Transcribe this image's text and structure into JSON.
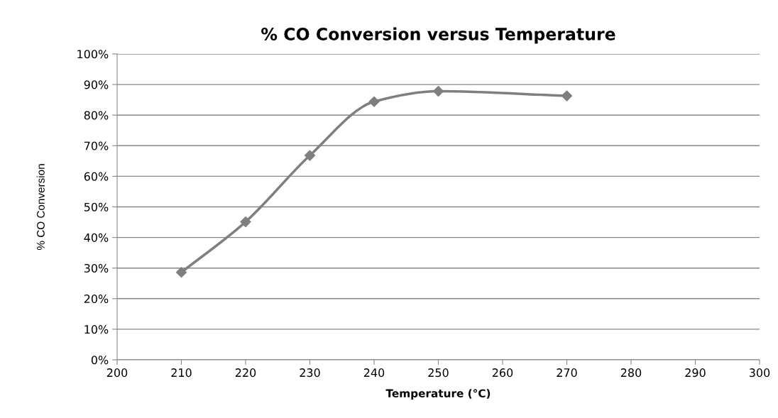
{
  "chart_data": {
    "type": "line",
    "title": "% CO Conversion versus Temperature",
    "xlabel": "Temperature (°C)",
    "ylabel": "% CO Conversion",
    "x": [
      210,
      220,
      230,
      240,
      250,
      270
    ],
    "series": [
      {
        "color": "#7f7f7f",
        "values": [
          28.6,
          45.1,
          66.8,
          84.4,
          87.8,
          86.3
        ]
      }
    ],
    "xlim": [
      200,
      300
    ],
    "xticks": [
      200,
      210,
      220,
      230,
      240,
      250,
      260,
      270,
      280,
      290,
      300
    ],
    "ylim": [
      0,
      100
    ],
    "yticks": [
      {
        "value": 0,
        "label": "0%"
      },
      {
        "value": 10,
        "label": "10%"
      },
      {
        "value": 20,
        "label": "20%"
      },
      {
        "value": 30,
        "label": "30%"
      },
      {
        "value": 40,
        "label": "40%"
      },
      {
        "value": 50,
        "label": "50%"
      },
      {
        "value": 60,
        "label": "60%"
      },
      {
        "value": 70,
        "label": "70%"
      },
      {
        "value": 80,
        "label": "80%"
      },
      {
        "value": 90,
        "label": "90%"
      },
      {
        "value": 100,
        "label": "100%"
      }
    ],
    "grid": "y",
    "marker": "diamond",
    "line_style": "solid",
    "legend": false
  }
}
